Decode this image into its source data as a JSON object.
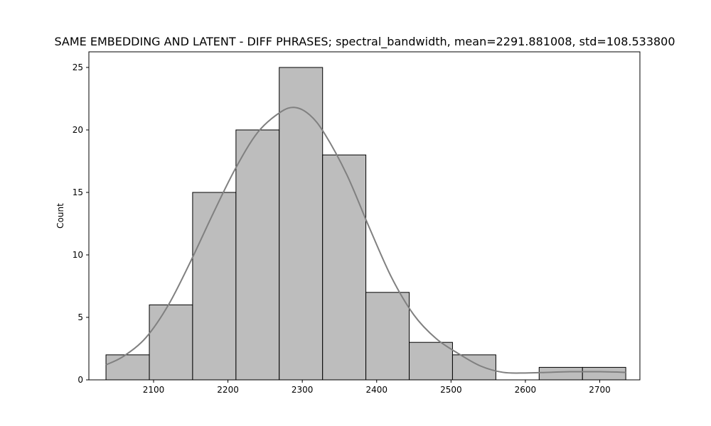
{
  "chart_data": {
    "type": "bar",
    "subtype": "histogram",
    "title": "SAME EMBEDDING AND LATENT - DIFF PHRASES; spectral_bandwidth, mean=2291.881008, std=108.533800",
    "xlabel": "",
    "ylabel": "Count",
    "xlim": [
      2013,
      2754
    ],
    "ylim": [
      0,
      26.25
    ],
    "xticks": [
      2100,
      2200,
      2300,
      2400,
      2500,
      2600,
      2700
    ],
    "yticks": [
      0,
      5,
      10,
      15,
      20,
      25
    ],
    "bin_edges": [
      2036,
      2094.3,
      2152.5,
      2210.8,
      2269,
      2327.3,
      2385.5,
      2443.8,
      2502,
      2560.3,
      2618.5,
      2676.8,
      2735
    ],
    "values": [
      2,
      6,
      15,
      20,
      25,
      18,
      7,
      3,
      2,
      0,
      1,
      1
    ],
    "kde": {
      "x": [
        2036,
        2060,
        2090,
        2120,
        2150,
        2180,
        2210,
        2240,
        2270,
        2290,
        2310,
        2330,
        2360,
        2390,
        2420,
        2450,
        2480,
        2510,
        2540,
        2570,
        2600,
        2630,
        2660,
        2700,
        2735
      ],
      "y": [
        1.2,
        1.9,
        3.4,
        6.0,
        9.5,
        13.3,
        16.9,
        19.8,
        21.4,
        21.8,
        21.2,
        19.7,
        16.4,
        12.2,
        8.2,
        5.2,
        3.3,
        2.1,
        1.1,
        0.6,
        0.55,
        0.6,
        0.65,
        0.65,
        0.6
      ]
    },
    "grid": false,
    "colors": {
      "bar_fill": "#bdbdbd",
      "bar_edge": "#000000",
      "kde_line": "#808080"
    }
  }
}
